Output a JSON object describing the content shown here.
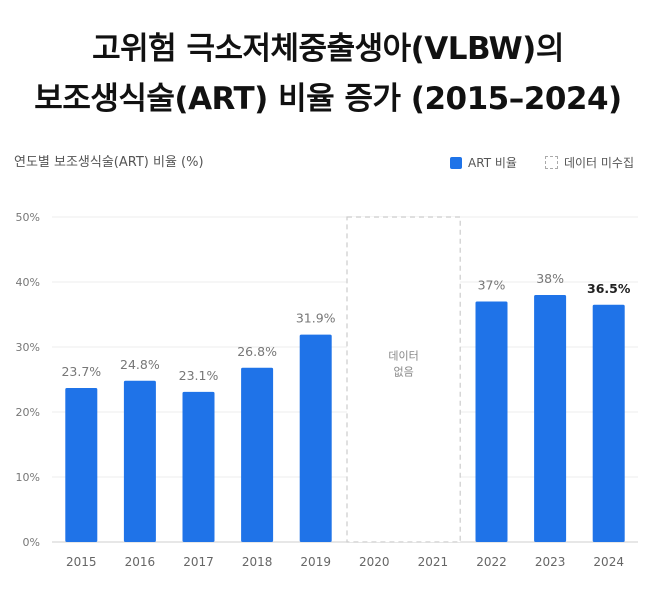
{
  "title_line1": "고위험 극소저체중출생아(VLBW)의",
  "title_line2": "보조생식술(ART) 비율 증가 (2015–2024)",
  "subtitle": "연도별 보조생식술(ART) 비율 (%)",
  "legend": {
    "series_label": "ART 비율",
    "missing_label": "데이터 미수집"
  },
  "missing_note_line1": "데이터",
  "missing_note_line2": "없음",
  "chart_data": {
    "type": "bar",
    "title": "연도별 보조생식술(ART) 비율 (%)",
    "xlabel": "",
    "ylabel": "",
    "categories": [
      "2015",
      "2016",
      "2017",
      "2018",
      "2019",
      "2020",
      "2021",
      "2022",
      "2023",
      "2024"
    ],
    "values": [
      23.7,
      24.8,
      23.1,
      26.8,
      31.9,
      null,
      null,
      37,
      38,
      36.5
    ],
    "value_labels": [
      "23.7%",
      "24.8%",
      "23.1%",
      "26.8%",
      "31.9%",
      "",
      "",
      "37%",
      "38%",
      "36.5%"
    ],
    "ylim": [
      0,
      50
    ],
    "yticks": [
      0,
      10,
      20,
      30,
      40,
      50
    ],
    "ytick_labels": [
      "0%",
      "10%",
      "20%",
      "30%",
      "40%",
      "50%"
    ],
    "missing_categories": [
      "2020",
      "2021"
    ],
    "highlight_category": "2024",
    "bar_color": "#1f73e8",
    "grid": true
  }
}
